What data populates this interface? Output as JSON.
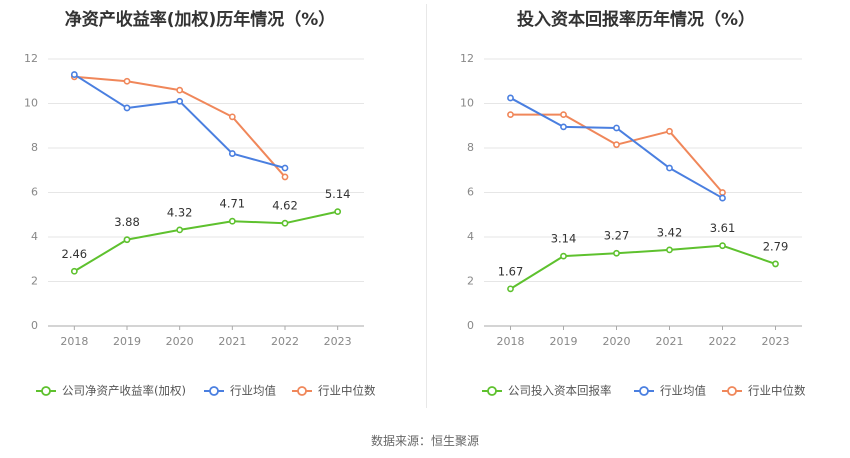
{
  "source": "数据来源：恒生聚源",
  "chart_data": [
    {
      "type": "line",
      "title": "净资产收益率(加权)历年情况（%）",
      "x": [
        "2018",
        "2019",
        "2020",
        "2021",
        "2022",
        "2023"
      ],
      "ylim": [
        0,
        12
      ],
      "yticks": [
        0,
        2,
        4,
        6,
        8,
        10,
        12
      ],
      "grid": true,
      "legend_position": "bottom",
      "series": [
        {
          "name": "公司净资产收益率(加权)",
          "color": "#5ec12e",
          "values": [
            2.46,
            3.88,
            4.32,
            4.71,
            4.62,
            5.14
          ],
          "labels": [
            "2.46",
            "3.88",
            "4.32",
            "4.71",
            "4.62",
            "5.14"
          ]
        },
        {
          "name": "行业均值",
          "color": "#4a7fe0",
          "values": [
            11.3,
            9.8,
            10.1,
            7.75,
            7.1,
            null
          ]
        },
        {
          "name": "行业中位数",
          "color": "#f0875a",
          "values": [
            11.2,
            11.0,
            10.6,
            9.4,
            6.7,
            null
          ]
        }
      ]
    },
    {
      "type": "line",
      "title": "投入资本回报率历年情况（%）",
      "x": [
        "2018",
        "2019",
        "2020",
        "2021",
        "2022",
        "2023"
      ],
      "ylim": [
        0,
        12
      ],
      "yticks": [
        0,
        2,
        4,
        6,
        8,
        10,
        12
      ],
      "grid": true,
      "legend_position": "bottom",
      "series": [
        {
          "name": "公司投入资本回报率",
          "color": "#5ec12e",
          "values": [
            1.67,
            3.14,
            3.27,
            3.42,
            3.61,
            2.79
          ],
          "labels": [
            "1.67",
            "3.14",
            "3.27",
            "3.42",
            "3.61",
            "2.79"
          ]
        },
        {
          "name": "行业均值",
          "color": "#4a7fe0",
          "values": [
            10.25,
            8.95,
            8.9,
            7.1,
            5.75,
            null
          ]
        },
        {
          "name": "行业中位数",
          "color": "#f0875a",
          "values": [
            9.5,
            9.5,
            8.15,
            8.75,
            6.0,
            null
          ]
        }
      ]
    }
  ]
}
